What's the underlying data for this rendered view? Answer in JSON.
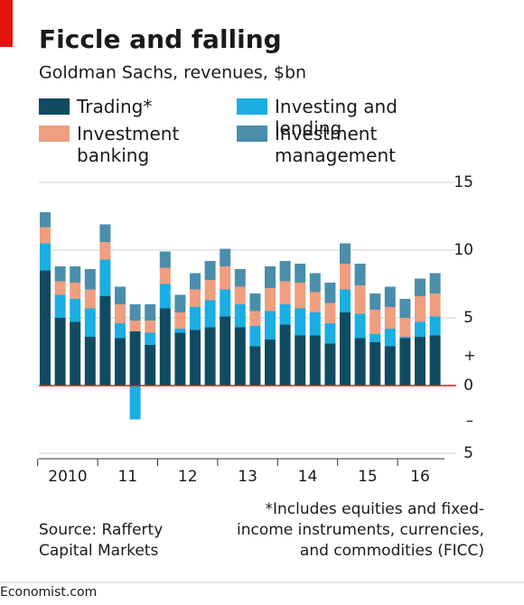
{
  "chart_data": {
    "type": "stacked_bar",
    "title": "Ficcle and falling",
    "subtitle": "Goldman Sachs, revenues, $bn",
    "year_labels": [
      "2010",
      "11",
      "12",
      "13",
      "14",
      "15",
      "16"
    ],
    "series": [
      {
        "name": "Trading*",
        "color": "#114b62",
        "values": [
          8.5,
          5.0,
          4.7,
          3.6,
          6.6,
          3.5,
          4.0,
          3.0,
          5.7,
          3.9,
          4.1,
          4.3,
          5.1,
          4.3,
          2.9,
          3.4,
          4.5,
          3.7,
          3.7,
          3.1,
          5.4,
          3.5,
          3.2,
          2.9,
          3.5,
          3.6,
          3.7
        ]
      },
      {
        "name": "Investing and lending",
        "color": "#1aaee2",
        "values": [
          2.0,
          1.7,
          1.7,
          2.1,
          2.7,
          1.1,
          -2.5,
          0.9,
          1.8,
          0.3,
          1.7,
          2.0,
          2.0,
          1.7,
          1.5,
          2.1,
          1.5,
          2.0,
          1.7,
          1.5,
          1.7,
          1.8,
          0.6,
          1.3,
          0.1,
          1.1,
          1.4
        ]
      },
      {
        "name": "Investment banking",
        "color": "#ef9e80",
        "values": [
          1.2,
          1.0,
          1.2,
          1.4,
          1.3,
          1.4,
          0.8,
          0.9,
          1.2,
          1.2,
          1.3,
          1.5,
          1.7,
          1.3,
          1.1,
          1.7,
          1.7,
          1.9,
          1.5,
          1.5,
          1.9,
          2.1,
          1.8,
          1.6,
          1.4,
          1.9,
          1.7
        ]
      },
      {
        "name": "Investment management",
        "color": "#4b8eab",
        "values": [
          1.1,
          1.1,
          1.2,
          1.5,
          1.3,
          1.3,
          1.2,
          1.2,
          1.2,
          1.3,
          1.2,
          1.4,
          1.3,
          1.3,
          1.3,
          1.6,
          1.5,
          1.4,
          1.4,
          1.5,
          1.5,
          1.6,
          1.2,
          1.5,
          1.4,
          1.3,
          1.5
        ]
      }
    ],
    "ylim": [
      -5,
      15
    ],
    "yticks": [
      15,
      10,
      5,
      0,
      {
        "value": -5,
        "label": "5"
      }
    ],
    "sign_labels": [
      "+",
      "–"
    ],
    "grid": true,
    "source": [
      "Source: Rafferty",
      "Capital Markets"
    ],
    "footnote": [
      "*Includes equities and fixed-",
      "income instruments, currencies,",
      "and commodities (FICC)"
    ],
    "brand": "Economist.com"
  }
}
